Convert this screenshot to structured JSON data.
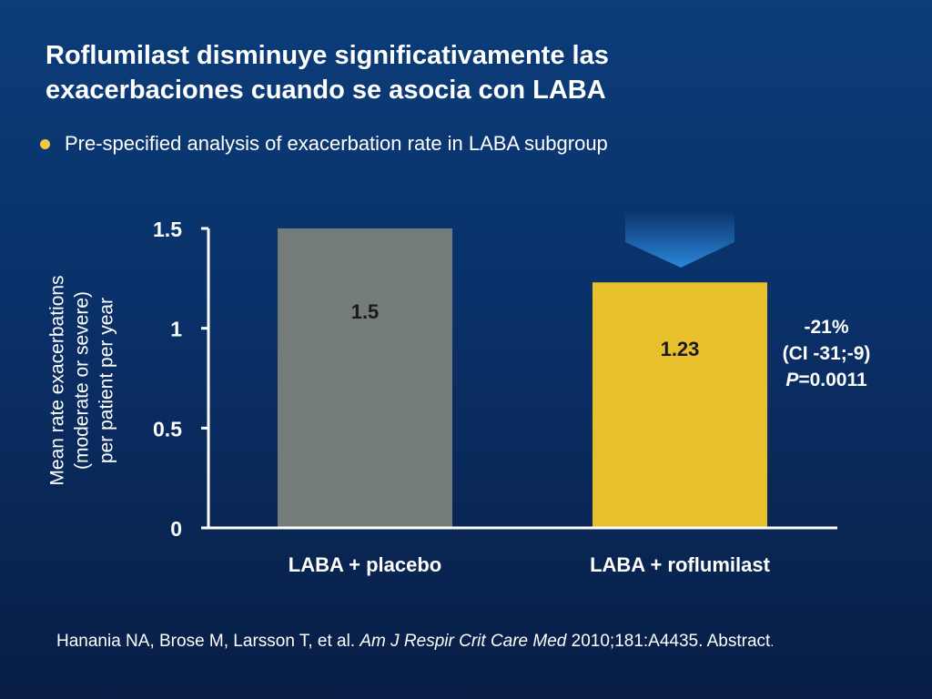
{
  "slide": {
    "title_line1": "Roflumilast disminuye significativamente las",
    "title_line2": "exacerbaciones cuando se asocia con LABA",
    "bullet": "Pre-specified analysis of exacerbation rate in LABA subgroup"
  },
  "chart_data": {
    "type": "bar",
    "categories": [
      "LABA + placebo",
      "LABA + roflumilast"
    ],
    "values": [
      1.5,
      1.23
    ],
    "data_labels": [
      "1.5",
      "1.23"
    ],
    "bar_colors": [
      "#737c7a",
      "#e7c02c"
    ],
    "ylabel_lines": [
      "Mean rate exacerbations",
      "(moderate or severe)",
      "per patient per year"
    ],
    "yticks": [
      0,
      0.5,
      1,
      1.5
    ],
    "ytick_labels": [
      "0",
      "0.5",
      "1",
      "1.5"
    ],
    "ylim": [
      0,
      1.5
    ],
    "grid": false,
    "annotation": {
      "line1": "-21%",
      "line2": "(CI -31;-9)",
      "p_symbol": "P",
      "p_value": "=0.0011"
    },
    "arrow_color": "#1a74c8"
  },
  "citation": {
    "authors": "Hanania NA, Brose M, Larsson T, et al. ",
    "journal": "Am J Respir Crit Care Med",
    "details": " 2010;181:A4435. Abstract",
    "end": "."
  }
}
